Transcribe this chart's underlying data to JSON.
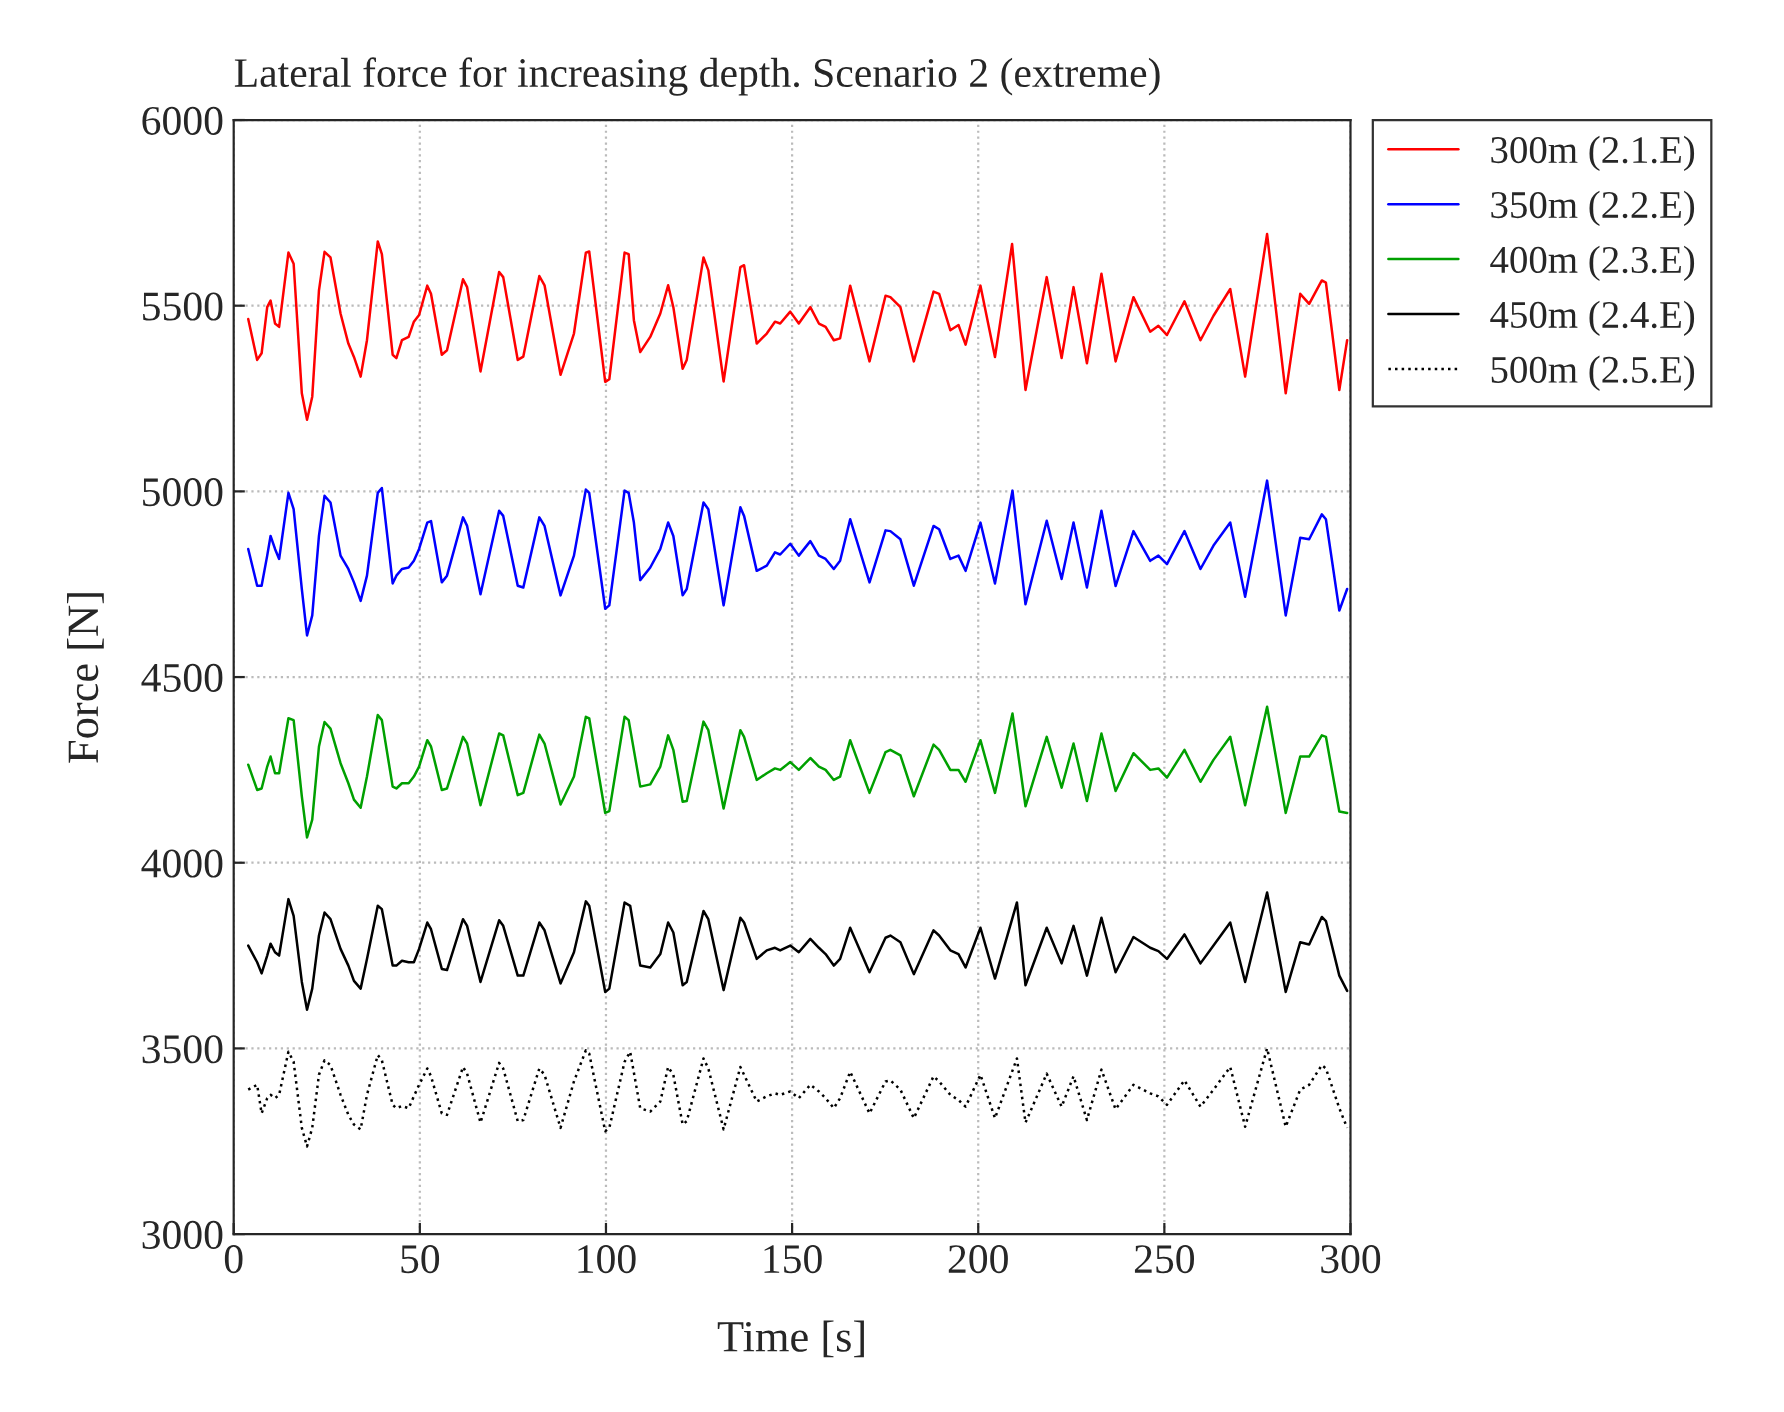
{
  "chart_data": {
    "type": "line",
    "title": "Lateral force for increasing depth. Scenario 2 (extreme)",
    "xlabel": "Time [s]",
    "ylabel": "Force [N]",
    "xlim": [
      0,
      300
    ],
    "ylim": [
      3000,
      6000
    ],
    "xticks": [
      0,
      50,
      100,
      150,
      200,
      250,
      300
    ],
    "yticks": [
      3000,
      3500,
      4000,
      4500,
      5000,
      5500,
      6000
    ],
    "grid": true,
    "legend": "top right",
    "series": [
      {
        "name": "300m (2.1.E)",
        "color": "#ff0000",
        "line_style": "solid",
        "x": [
          3.9,
          6.3,
          7.5,
          9,
          9.9,
          11.1,
          12.2,
          14.7,
          16.1,
          18.3,
          19.7,
          21.1,
          22.9,
          24.4,
          26,
          28.7,
          30.8,
          32.3,
          34.1,
          35.8,
          38.7,
          39.8,
          42.7,
          43.7,
          45.2,
          47,
          48.4,
          49.8,
          52,
          53,
          55.9,
          57.3,
          61.6,
          62.7,
          66.3,
          71.3,
          72.4,
          76.3,
          77.8,
          82.1,
          83.5,
          87.8,
          91.4,
          94.6,
          95.5,
          99.8,
          100.9,
          105,
          106.1,
          107.5,
          109.2,
          111.9,
          114.6,
          116.7,
          118.1,
          120.6,
          121.7,
          126.2,
          127.5,
          131.6,
          136.1,
          137.1,
          140.5,
          143.2,
          145.4,
          146.8,
          149.5,
          151.8,
          154.9,
          157.2,
          159,
          161.2,
          162.9,
          165.6,
          170.8,
          175.1,
          176.4,
          179.1,
          182.7,
          188,
          189.5,
          192.5,
          194.7,
          196.6,
          200.6,
          204.5,
          209.1,
          212.7,
          218.4,
          222.4,
          225.6,
          229.2,
          233.1,
          236.9,
          241.7,
          246.2,
          248.4,
          250.7,
          255.4,
          259.7,
          263.2,
          267.7,
          271.7,
          277.6,
          282.6,
          286.5,
          288.9,
          292.3,
          293.4,
          297,
          299.1
        ],
        "values": [
          5464,
          5354,
          5372,
          5496,
          5514,
          5452,
          5443,
          5643,
          5613,
          5264,
          5193,
          5255,
          5541,
          5645,
          5630,
          5479,
          5398,
          5362,
          5309,
          5407,
          5673,
          5639,
          5368,
          5359,
          5407,
          5416,
          5457,
          5475,
          5554,
          5532,
          5368,
          5380,
          5571,
          5550,
          5323,
          5591,
          5577,
          5354,
          5363,
          5580,
          5555,
          5314,
          5425,
          5643,
          5646,
          5295,
          5302,
          5643,
          5639,
          5461,
          5375,
          5416,
          5479,
          5555,
          5496,
          5330,
          5354,
          5630,
          5595,
          5296,
          5604,
          5609,
          5398,
          5425,
          5457,
          5452,
          5484,
          5452,
          5496,
          5452,
          5443,
          5407,
          5412,
          5554,
          5350,
          5527,
          5523,
          5496,
          5350,
          5538,
          5532,
          5434,
          5448,
          5395,
          5554,
          5362,
          5666,
          5273,
          5577,
          5359,
          5550,
          5345,
          5586,
          5350,
          5523,
          5430,
          5446,
          5421,
          5512,
          5407,
          5473,
          5545,
          5309,
          5693,
          5264,
          5532,
          5505,
          5568,
          5562,
          5273,
          5407
        ]
      },
      {
        "name": "350m (2.2.E)",
        "color": "#0000ff",
        "line_style": "solid",
        "x": [
          3.9,
          6.3,
          7.5,
          9,
          9.9,
          11.1,
          12.2,
          14.7,
          16.1,
          18.3,
          19.7,
          21.1,
          22.9,
          24.4,
          26,
          28.7,
          30.8,
          32.3,
          34.1,
          35.8,
          38.7,
          39.8,
          42.7,
          43.7,
          45.2,
          47,
          48.4,
          49.8,
          52,
          53,
          55.9,
          57.3,
          61.6,
          62.7,
          66.3,
          71.3,
          72.4,
          76.3,
          77.8,
          82.1,
          83.5,
          87.8,
          91.4,
          94.6,
          95.5,
          99.8,
          100.9,
          105,
          106.1,
          107.5,
          109.2,
          111.9,
          114.6,
          116.7,
          118.1,
          120.6,
          121.7,
          126.2,
          127.5,
          131.6,
          136.1,
          137.1,
          140.5,
          143.2,
          145.4,
          146.8,
          149.5,
          151.8,
          154.9,
          157.2,
          159,
          161.2,
          162.9,
          165.6,
          170.8,
          175.1,
          176.4,
          179.1,
          182.7,
          188,
          189.5,
          192.5,
          194.7,
          196.6,
          200.6,
          204.5,
          209.2,
          212.7,
          218.4,
          222.4,
          225.6,
          229.2,
          233.1,
          236.9,
          241.7,
          246.2,
          248.4,
          250.7,
          255.4,
          259.7,
          263.2,
          267.7,
          271.7,
          277.6,
          282.6,
          286.5,
          288.9,
          292.3,
          293.4,
          297,
          299.1
        ],
        "values": [
          4845,
          4746,
          4746,
          4827,
          4880,
          4845,
          4818,
          4996,
          4952,
          4737,
          4612,
          4666,
          4880,
          4988,
          4970,
          4827,
          4791,
          4755,
          4705,
          4773,
          4996,
          5009,
          4752,
          4773,
          4791,
          4795,
          4813,
          4845,
          4916,
          4920,
          4755,
          4773,
          4930,
          4907,
          4723,
          4948,
          4934,
          4746,
          4741,
          4930,
          4907,
          4720,
          4827,
          5005,
          4996,
          4684,
          4693,
          5002,
          4996,
          4916,
          4761,
          4795,
          4845,
          4916,
          4880,
          4720,
          4737,
          4970,
          4952,
          4693,
          4957,
          4934,
          4786,
          4800,
          4836,
          4830,
          4859,
          4827,
          4866,
          4827,
          4818,
          4791,
          4813,
          4925,
          4755,
          4895,
          4893,
          4871,
          4746,
          4907,
          4898,
          4818,
          4827,
          4786,
          4916,
          4752,
          5002,
          4696,
          4921,
          4764,
          4916,
          4741,
          4948,
          4745,
          4893,
          4813,
          4827,
          4804,
          4893,
          4791,
          4854,
          4916,
          4716,
          5029,
          4666,
          4875,
          4871,
          4938,
          4925,
          4679,
          4737
        ]
      },
      {
        "name": "400m (2.3.E)",
        "color": "#00a000",
        "line_style": "solid",
        "x": [
          3.9,
          6.3,
          7.5,
          9,
          9.9,
          11.1,
          12.2,
          14.7,
          16.1,
          18.3,
          19.7,
          21.1,
          22.9,
          24.4,
          26,
          28.7,
          30.8,
          32.3,
          34.1,
          35.8,
          38.7,
          39.8,
          42.7,
          43.7,
          45.2,
          47,
          48.4,
          49.8,
          52,
          53,
          55.9,
          57.3,
          61.6,
          62.7,
          66.3,
          71.3,
          72.4,
          76.3,
          77.8,
          82.1,
          83.5,
          87.8,
          91.4,
          94.6,
          95.5,
          99.8,
          100.9,
          105,
          106.1,
          109.2,
          111.9,
          114.6,
          116.7,
          118.1,
          120.6,
          121.7,
          126.2,
          127.5,
          131.6,
          136.1,
          137.1,
          140.5,
          143.2,
          145.4,
          146.8,
          149.5,
          151.8,
          154.9,
          157.2,
          159,
          161.2,
          162.9,
          165.6,
          170.8,
          175.1,
          176.4,
          179.1,
          182.7,
          188,
          189.5,
          192.5,
          194.7,
          196.6,
          200.6,
          204.5,
          209.2,
          212.7,
          218.4,
          222.4,
          225.6,
          229.2,
          233.1,
          236.9,
          241.7,
          246.2,
          248.4,
          250.7,
          255.4,
          259.7,
          263.2,
          267.7,
          271.7,
          277.6,
          282.6,
          286.5,
          288.9,
          292.3,
          293.4,
          297,
          299.1
        ],
        "values": [
          4264,
          4196,
          4200,
          4259,
          4286,
          4241,
          4241,
          4389,
          4384,
          4179,
          4068,
          4116,
          4313,
          4379,
          4361,
          4268,
          4214,
          4170,
          4148,
          4232,
          4398,
          4384,
          4205,
          4200,
          4214,
          4214,
          4232,
          4259,
          4330,
          4313,
          4196,
          4200,
          4339,
          4321,
          4155,
          4348,
          4343,
          4182,
          4188,
          4345,
          4321,
          4157,
          4232,
          4393,
          4389,
          4134,
          4139,
          4393,
          4384,
          4205,
          4211,
          4259,
          4343,
          4304,
          4164,
          4166,
          4380,
          4357,
          4146,
          4357,
          4339,
          4223,
          4241,
          4254,
          4250,
          4271,
          4250,
          4282,
          4259,
          4250,
          4223,
          4232,
          4330,
          4188,
          4298,
          4304,
          4289,
          4179,
          4318,
          4304,
          4250,
          4250,
          4218,
          4330,
          4188,
          4402,
          4152,
          4339,
          4202,
          4321,
          4166,
          4348,
          4193,
          4295,
          4250,
          4254,
          4229,
          4304,
          4218,
          4277,
          4339,
          4155,
          4420,
          4134,
          4286,
          4286,
          4343,
          4339,
          4138,
          4134
        ]
      },
      {
        "name": "450m (2.4.E)",
        "color": "#000000",
        "line_style": "solid",
        "x": [
          3.9,
          6.3,
          7.5,
          9,
          9.9,
          11.1,
          12.2,
          14.7,
          16.1,
          18.3,
          19.7,
          21.1,
          22.9,
          24.4,
          26,
          28.7,
          30.8,
          32.3,
          34.1,
          35.8,
          38.7,
          39.8,
          42.7,
          43.7,
          45.2,
          47,
          48.4,
          49.8,
          52,
          53,
          55.9,
          57.3,
          61.6,
          62.7,
          66.3,
          71.3,
          72.4,
          76.3,
          77.8,
          82.1,
          83.5,
          87.8,
          91.4,
          94.6,
          95.5,
          99.8,
          100.9,
          105,
          106.5,
          109.2,
          111.9,
          114.6,
          116.7,
          118.1,
          120.6,
          121.7,
          126.2,
          127.5,
          131.6,
          136.1,
          137.1,
          140.5,
          143.2,
          145.4,
          146.8,
          149.5,
          151.8,
          154.9,
          157.2,
          159,
          161.2,
          162.9,
          165.6,
          170.8,
          175.1,
          176.4,
          179.1,
          182.7,
          188,
          189.5,
          192.5,
          194.7,
          196.6,
          200.6,
          204.5,
          210.4,
          212.7,
          218.4,
          222.4,
          225.6,
          229.2,
          233.1,
          236.9,
          241.7,
          246.2,
          248.4,
          250.7,
          255.4,
          259.7,
          263.2,
          267.7,
          271.7,
          277.6,
          282.6,
          286.5,
          288.9,
          292.3,
          293.4,
          297,
          299.1
        ],
        "values": [
          3777,
          3732,
          3702,
          3750,
          3782,
          3759,
          3750,
          3902,
          3857,
          3679,
          3604,
          3661,
          3804,
          3866,
          3848,
          3768,
          3723,
          3682,
          3661,
          3741,
          3884,
          3875,
          3723,
          3723,
          3736,
          3732,
          3732,
          3768,
          3839,
          3821,
          3714,
          3711,
          3848,
          3830,
          3679,
          3845,
          3830,
          3696,
          3696,
          3839,
          3818,
          3675,
          3759,
          3896,
          3884,
          3652,
          3661,
          3893,
          3884,
          3723,
          3718,
          3754,
          3839,
          3812,
          3670,
          3679,
          3870,
          3848,
          3657,
          3852,
          3839,
          3741,
          3764,
          3771,
          3764,
          3777,
          3759,
          3795,
          3771,
          3754,
          3723,
          3741,
          3825,
          3705,
          3798,
          3804,
          3786,
          3700,
          3818,
          3804,
          3764,
          3754,
          3718,
          3825,
          3688,
          3893,
          3670,
          3825,
          3729,
          3830,
          3696,
          3852,
          3705,
          3800,
          3771,
          3762,
          3741,
          3807,
          3729,
          3777,
          3839,
          3679,
          3920,
          3652,
          3786,
          3780,
          3854,
          3843,
          3696,
          3655
        ]
      },
      {
        "name": "500m (2.5.E)",
        "color": "#000000",
        "line_style": "dotted",
        "x": [
          3.9,
          6.3,
          7.5,
          9,
          9.9,
          11.1,
          12.2,
          14.7,
          16.1,
          18.3,
          19.7,
          21.1,
          22.9,
          24.4,
          26,
          28.7,
          30.8,
          32.3,
          34.1,
          35.8,
          38.7,
          39.8,
          42.7,
          43.7,
          45.2,
          47,
          48.4,
          49.8,
          52,
          53,
          55.9,
          57.3,
          61.6,
          62.7,
          66.3,
          71.3,
          72.4,
          76.3,
          77.8,
          82.1,
          83.5,
          87.8,
          91.4,
          94.6,
          95.5,
          99.8,
          100.9,
          105,
          106.5,
          109.2,
          111.9,
          114.6,
          116.7,
          118.1,
          120.6,
          121.7,
          126.2,
          127.5,
          131.6,
          136.1,
          137.1,
          140.5,
          143.2,
          145.4,
          146.8,
          149.5,
          151.8,
          154.9,
          157.2,
          159,
          161.2,
          162.9,
          165.6,
          170.8,
          175.1,
          176.4,
          179.1,
          182.7,
          188,
          189.5,
          192.5,
          194.7,
          196.6,
          200.6,
          204.5,
          210.4,
          212.7,
          218.4,
          222.4,
          225.6,
          229.2,
          233.1,
          236.9,
          241.7,
          246.2,
          248.4,
          250.7,
          255.4,
          259.7,
          263.2,
          267.7,
          271.7,
          277.6,
          282.6,
          286.5,
          288.9,
          292.3,
          293.4,
          297,
          299.1
        ],
        "values": [
          3389,
          3402,
          3325,
          3366,
          3375,
          3366,
          3375,
          3491,
          3464,
          3286,
          3236,
          3286,
          3429,
          3468,
          3455,
          3375,
          3321,
          3295,
          3282,
          3375,
          3482,
          3468,
          3348,
          3339,
          3345,
          3339,
          3371,
          3402,
          3446,
          3425,
          3325,
          3321,
          3450,
          3432,
          3300,
          3461,
          3446,
          3304,
          3307,
          3446,
          3429,
          3286,
          3411,
          3495,
          3486,
          3277,
          3286,
          3464,
          3491,
          3339,
          3330,
          3357,
          3450,
          3429,
          3295,
          3304,
          3473,
          3446,
          3282,
          3450,
          3429,
          3357,
          3371,
          3379,
          3375,
          3384,
          3366,
          3402,
          3384,
          3366,
          3339,
          3366,
          3437,
          3325,
          3411,
          3414,
          3389,
          3312,
          3425,
          3411,
          3375,
          3361,
          3343,
          3429,
          3312,
          3473,
          3300,
          3432,
          3343,
          3425,
          3307,
          3443,
          3336,
          3402,
          3379,
          3371,
          3348,
          3414,
          3343,
          3389,
          3450,
          3289,
          3500,
          3289,
          3389,
          3402,
          3455,
          3446,
          3339,
          3286
        ]
      }
    ]
  }
}
